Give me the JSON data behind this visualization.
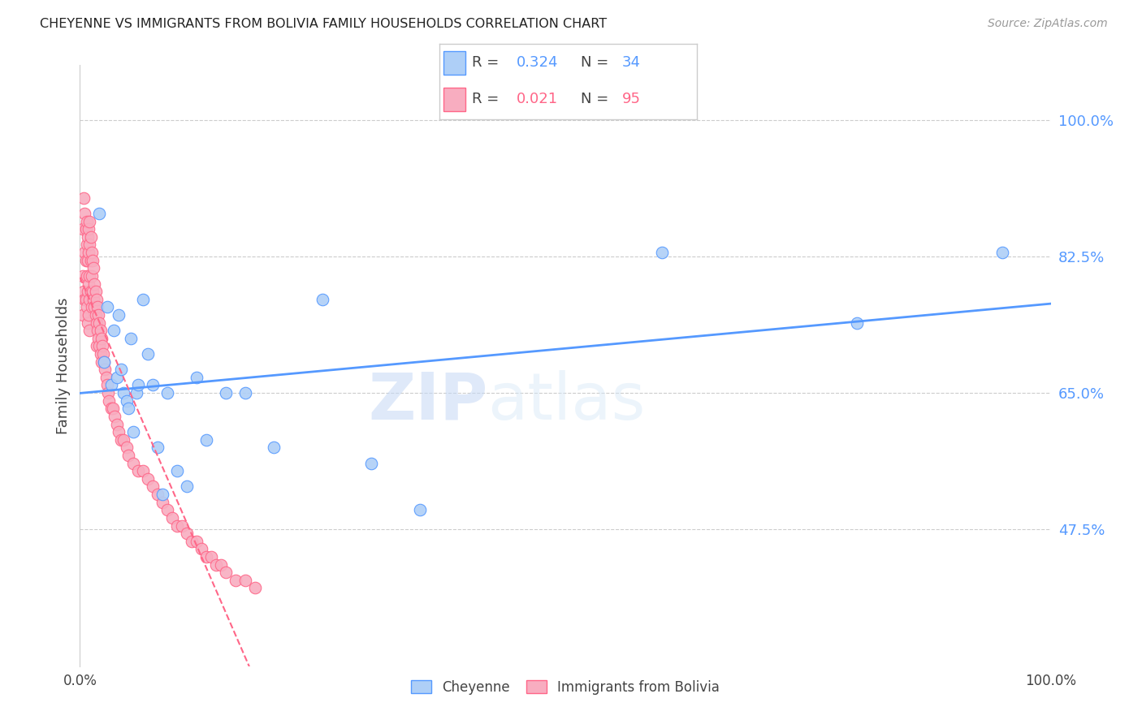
{
  "title": "CHEYENNE VS IMMIGRANTS FROM BOLIVIA FAMILY HOUSEHOLDS CORRELATION CHART",
  "source": "Source: ZipAtlas.com",
  "ylabel": "Family Households",
  "watermark_zip": "ZIP",
  "watermark_atlas": "atlas",
  "xlim": [
    0,
    100
  ],
  "ylim": [
    30,
    107
  ],
  "yticks": [
    47.5,
    65.0,
    82.5,
    100.0
  ],
  "ytick_labels": [
    "47.5%",
    "65.0%",
    "82.5%",
    "100.0%"
  ],
  "legend1_R": "0.324",
  "legend1_N": "34",
  "legend2_R": "0.021",
  "legend2_N": "95",
  "cheyenne_color": "#aecff7",
  "bolivia_color": "#f8adc0",
  "line_cheyenne_color": "#5599ff",
  "line_bolivia_color": "#ff6688",
  "cheyenne_x": [
    2.0,
    2.5,
    2.8,
    3.2,
    3.5,
    3.8,
    4.0,
    4.2,
    4.5,
    4.8,
    5.0,
    5.2,
    5.5,
    5.8,
    6.0,
    6.5,
    7.0,
    7.5,
    8.0,
    8.5,
    9.0,
    10.0,
    11.0,
    12.0,
    13.0,
    15.0,
    17.0,
    20.0,
    25.0,
    30.0,
    35.0,
    60.0,
    80.0,
    95.0
  ],
  "cheyenne_y": [
    88,
    69,
    76,
    66,
    73,
    67,
    75,
    68,
    65,
    64,
    63,
    72,
    60,
    65,
    66,
    77,
    70,
    66,
    58,
    52,
    65,
    55,
    53,
    67,
    59,
    65,
    65,
    58,
    77,
    56,
    50,
    83,
    74,
    83
  ],
  "bolivia_x": [
    0.3,
    0.3,
    0.3,
    0.4,
    0.4,
    0.5,
    0.5,
    0.5,
    0.6,
    0.6,
    0.6,
    0.7,
    0.7,
    0.7,
    0.7,
    0.8,
    0.8,
    0.8,
    0.8,
    0.9,
    0.9,
    0.9,
    0.9,
    1.0,
    1.0,
    1.0,
    1.0,
    1.0,
    1.1,
    1.1,
    1.1,
    1.2,
    1.2,
    1.2,
    1.3,
    1.3,
    1.4,
    1.4,
    1.5,
    1.5,
    1.6,
    1.6,
    1.7,
    1.7,
    1.7,
    1.8,
    1.8,
    1.9,
    1.9,
    2.0,
    2.0,
    2.1,
    2.1,
    2.2,
    2.2,
    2.3,
    2.4,
    2.5,
    2.6,
    2.7,
    2.8,
    2.9,
    3.0,
    3.2,
    3.4,
    3.6,
    3.8,
    4.0,
    4.2,
    4.5,
    4.8,
    5.0,
    5.5,
    6.0,
    6.5,
    7.0,
    7.5,
    8.0,
    8.5,
    9.0,
    9.5,
    10.0,
    10.5,
    11.0,
    11.5,
    12.0,
    12.5,
    13.0,
    13.5,
    14.0,
    14.5,
    15.0,
    16.0,
    17.0,
    18.0
  ],
  "bolivia_y": [
    86,
    80,
    75,
    90,
    78,
    88,
    83,
    77,
    86,
    82,
    77,
    87,
    84,
    80,
    76,
    85,
    82,
    78,
    74,
    86,
    83,
    79,
    75,
    87,
    84,
    80,
    77,
    73,
    85,
    82,
    78,
    83,
    80,
    76,
    82,
    78,
    81,
    77,
    79,
    76,
    78,
    75,
    77,
    74,
    71,
    76,
    73,
    75,
    72,
    74,
    71,
    73,
    70,
    72,
    69,
    71,
    70,
    69,
    68,
    67,
    66,
    65,
    64,
    63,
    63,
    62,
    61,
    60,
    59,
    59,
    58,
    57,
    56,
    55,
    55,
    54,
    53,
    52,
    51,
    50,
    49,
    48,
    48,
    47,
    46,
    46,
    45,
    44,
    44,
    43,
    43,
    42,
    41,
    41,
    40
  ]
}
